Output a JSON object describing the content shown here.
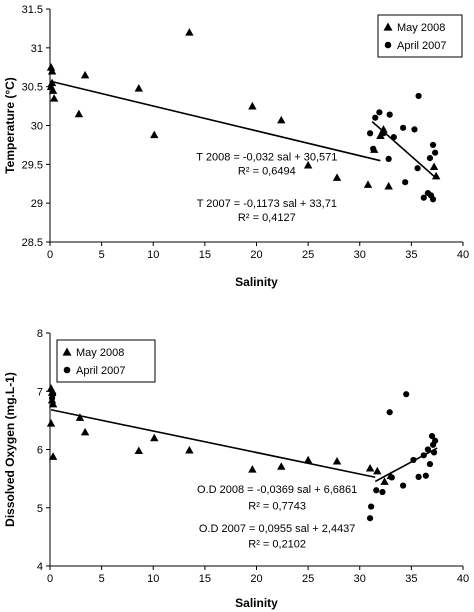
{
  "chart_data": [
    {
      "type": "scatter",
      "xlabel": "Salinity",
      "ylabel": "Temperature (°C)",
      "xlim": [
        0,
        40
      ],
      "ylim": [
        28.5,
        31.5
      ],
      "x_ticks": [
        "0",
        "5",
        "10",
        "15",
        "20",
        "25",
        "30",
        "35",
        "40"
      ],
      "y_ticks": [
        "28.5",
        "29",
        "29.5",
        "30",
        "30.5",
        "31",
        "31.5"
      ],
      "grid": false,
      "legend_position": "top-right",
      "series": [
        {
          "name": "May 2008",
          "marker": "triangle",
          "points": [
            [
              0.1,
              30.75
            ],
            [
              0.2,
              30.7
            ],
            [
              0.1,
              30.5
            ],
            [
              0.3,
              30.45
            ],
            [
              0.2,
              30.55
            ],
            [
              0.4,
              30.35
            ],
            [
              3.4,
              30.65
            ],
            [
              2.8,
              30.15
            ],
            [
              8.6,
              30.48
            ],
            [
              10.1,
              29.88
            ],
            [
              13.5,
              31.2
            ],
            [
              19.6,
              30.25
            ],
            [
              22.4,
              30.07
            ],
            [
              25.0,
              29.49
            ],
            [
              27.8,
              29.33
            ],
            [
              30.8,
              29.24
            ],
            [
              31.4,
              29.69
            ],
            [
              32.0,
              29.87
            ],
            [
              32.3,
              29.95
            ],
            [
              32.8,
              29.22
            ],
            [
              37.2,
              29.47
            ],
            [
              37.4,
              29.35
            ]
          ]
        },
        {
          "name": "April 2007",
          "marker": "circle",
          "points": [
            [
              31.0,
              29.9
            ],
            [
              31.3,
              29.7
            ],
            [
              31.5,
              30.1
            ],
            [
              31.9,
              30.17
            ],
            [
              32.3,
              29.9
            ],
            [
              32.8,
              29.57
            ],
            [
              32.9,
              30.14
            ],
            [
              33.3,
              29.85
            ],
            [
              34.2,
              29.97
            ],
            [
              34.4,
              29.27
            ],
            [
              35.3,
              29.95
            ],
            [
              35.7,
              30.38
            ],
            [
              35.6,
              29.45
            ],
            [
              36.2,
              29.07
            ],
            [
              36.6,
              29.13
            ],
            [
              36.8,
              29.58
            ],
            [
              36.9,
              29.1
            ],
            [
              37.1,
              29.75
            ],
            [
              37.1,
              29.05
            ],
            [
              37.3,
              29.65
            ]
          ]
        }
      ],
      "trendlines": [
        {
          "series": "May 2008",
          "x0": 0.1,
          "x1": 32,
          "slope": -0.032,
          "intercept": 30.571
        },
        {
          "series": "April 2007",
          "x0": 31.2,
          "x1": 37.5,
          "slope": -0.1173,
          "intercept": 33.71
        }
      ],
      "annotations": [
        {
          "line1": "T 2008 = -0,032 sal + 30,571",
          "line2": "R² = 0,6494",
          "x": 21,
          "y1": 29.55,
          "y2": 29.37
        },
        {
          "line1": "T 2007 = -0,1173 sal + 33,71",
          "line2": "R² = 0,4127",
          "x": 21,
          "y1": 28.95,
          "y2": 28.77
        }
      ]
    },
    {
      "type": "scatter",
      "xlabel": "Salinity",
      "ylabel": "Dissolved Oxygen (mg.L-1)",
      "xlim": [
        0,
        40
      ],
      "ylim": [
        4,
        8
      ],
      "x_ticks": [
        "0",
        "5",
        "10",
        "15",
        "20",
        "25",
        "30",
        "35",
        "40"
      ],
      "y_ticks": [
        "4",
        "5",
        "6",
        "7",
        "8"
      ],
      "grid": false,
      "legend_position": "top-left",
      "series": [
        {
          "name": "May 2008",
          "marker": "triangle",
          "points": [
            [
              0.1,
              7.05
            ],
            [
              0.2,
              6.98
            ],
            [
              0.2,
              6.85
            ],
            [
              0.3,
              6.78
            ],
            [
              0.1,
              6.45
            ],
            [
              0.3,
              5.88
            ],
            [
              2.9,
              6.55
            ],
            [
              3.4,
              6.3
            ],
            [
              8.6,
              5.98
            ],
            [
              10.1,
              6.2
            ],
            [
              13.5,
              5.99
            ],
            [
              19.6,
              5.66
            ],
            [
              22.4,
              5.71
            ],
            [
              25.0,
              5.82
            ],
            [
              27.8,
              5.8
            ],
            [
              31.0,
              5.68
            ],
            [
              31.7,
              5.63
            ],
            [
              32.4,
              5.45
            ],
            [
              33.0,
              5.55
            ]
          ]
        },
        {
          "name": "April 2007",
          "marker": "circle",
          "points": [
            [
              0.3,
              6.95
            ],
            [
              0.2,
              6.88
            ],
            [
              31.0,
              4.82
            ],
            [
              31.1,
              5.02
            ],
            [
              31.6,
              5.3
            ],
            [
              32.2,
              5.27
            ],
            [
              32.9,
              6.64
            ],
            [
              33.1,
              5.52
            ],
            [
              34.2,
              5.38
            ],
            [
              34.5,
              6.95
            ],
            [
              35.2,
              5.82
            ],
            [
              35.7,
              5.53
            ],
            [
              36.2,
              5.9
            ],
            [
              36.4,
              5.55
            ],
            [
              36.6,
              6.0
            ],
            [
              36.8,
              5.75
            ],
            [
              37.0,
              6.23
            ],
            [
              37.1,
              6.08
            ],
            [
              37.2,
              5.95
            ],
            [
              37.3,
              6.15
            ]
          ]
        }
      ],
      "trendlines": [
        {
          "series": "May 2008",
          "x0": 0.1,
          "x1": 31.5,
          "slope": -0.0369,
          "intercept": 6.6861
        },
        {
          "series": "April 2007",
          "x0": 31.5,
          "x1": 37.5,
          "slope": 0.0955,
          "intercept": 2.4437
        }
      ],
      "annotations": [
        {
          "line1": "O.D 2008 = -0,0369 sal + 6,6861",
          "line2": "R² = 0,7743",
          "x": 22,
          "y1": 5.25,
          "y2": 4.97
        },
        {
          "line1": "O.D 2007 = 0,0955 sal + 2,4437",
          "line2": "R² = 0,2102",
          "x": 22,
          "y1": 4.58,
          "y2": 4.32
        }
      ]
    }
  ]
}
